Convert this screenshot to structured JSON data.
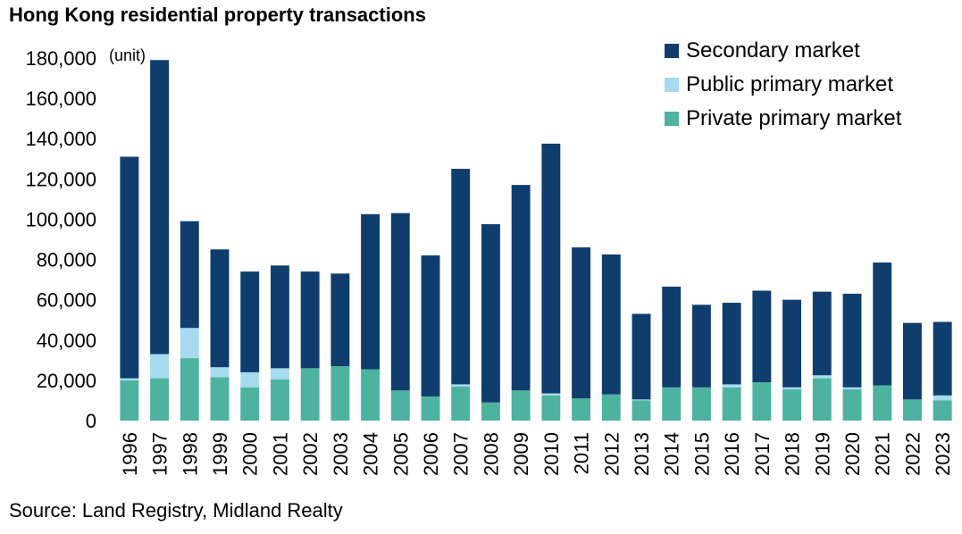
{
  "chart_data": {
    "type": "bar",
    "stacked": true,
    "title": "Hong Kong residential property transactions",
    "unit_label": "(unit)",
    "source": "Source: Land Registry, Midland Realty",
    "categories": [
      "1996",
      "1997",
      "1998",
      "1999",
      "2000",
      "2001",
      "2002",
      "2003",
      "2004",
      "2005",
      "2006",
      "2007",
      "2008",
      "2009",
      "2010",
      "2011",
      "2012",
      "2013",
      "2014",
      "2015",
      "2016",
      "2017",
      "2018",
      "2019",
      "2020",
      "2021",
      "2022",
      "2023"
    ],
    "series": [
      {
        "name": "Private primary market",
        "color": "#4db39e",
        "values": [
          20000,
          21000,
          31000,
          21500,
          16500,
          20500,
          26000,
          27000,
          25500,
          15000,
          12000,
          17000,
          9000,
          15000,
          12500,
          11000,
          13000,
          10000,
          16500,
          16500,
          16500,
          19000,
          15500,
          21000,
          15500,
          17500,
          10500,
          10000
        ]
      },
      {
        "name": "Public primary market",
        "color": "#a6dbef",
        "values": [
          1000,
          12000,
          15000,
          5000,
          7500,
          5500,
          0,
          0,
          0,
          0,
          0,
          1000,
          0,
          0,
          1000,
          0,
          0,
          500,
          0,
          0,
          1500,
          0,
          1000,
          1500,
          1000,
          0,
          0,
          2500
        ]
      },
      {
        "name": "Secondary market",
        "color": "#0f3d6e",
        "values": [
          110000,
          146000,
          53000,
          58500,
          50000,
          51000,
          48000,
          46000,
          77000,
          88000,
          70000,
          107000,
          88500,
          102000,
          124000,
          75000,
          69500,
          42500,
          50000,
          41000,
          40500,
          45500,
          43500,
          41500,
          46500,
          61000,
          38000,
          36500
        ]
      }
    ],
    "legend": [
      "Secondary market",
      "Public primary market",
      "Private primary market"
    ],
    "legend_position": "top-right",
    "ylim": [
      0,
      180000
    ],
    "yticks": [
      "0",
      "20,000",
      "40,000",
      "60,000",
      "80,000",
      "100,000",
      "120,000",
      "140,000",
      "160,000",
      "180,000"
    ],
    "ytick_values": [
      0,
      20000,
      40000,
      60000,
      80000,
      100000,
      120000,
      140000,
      160000,
      180000
    ],
    "grid": false
  }
}
